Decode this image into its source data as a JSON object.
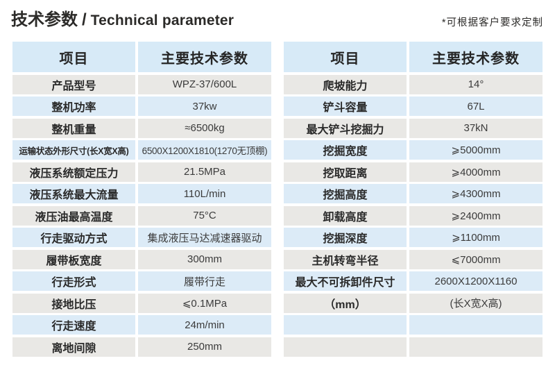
{
  "title": {
    "zh": "技术参数",
    "divider": "/",
    "en": "Technical parameter"
  },
  "note": "*可根据客户要求定制",
  "colors": {
    "header_bg": "#d7eaf7",
    "row_blue": "#dcebf7",
    "row_gray": "#e9e8e5",
    "text": "#2b2b2b"
  },
  "tables": [
    {
      "headers": [
        "项目",
        "主要技术参数"
      ],
      "rows": [
        {
          "label": "产品型号",
          "value": "WPZ-37/600L"
        },
        {
          "label": "整机功率",
          "value": "37kw"
        },
        {
          "label": "整机重量",
          "value": "≈6500kg"
        },
        {
          "label": "运输状态外形尺寸(长X宽X高)",
          "value": "6500X1200X1810(1270无顶棚)"
        },
        {
          "label": "液压系统额定压力",
          "value": "21.5MPa"
        },
        {
          "label": "液压系统最大流量",
          "value": "110L/min"
        },
        {
          "label": "液压油最高温度",
          "value": "75°C"
        },
        {
          "label": "行走驱动方式",
          "value": "集成液压马达减速器驱动"
        },
        {
          "label": "履带板宽度",
          "value": "300mm"
        },
        {
          "label": "行走形式",
          "value": "履带行走"
        },
        {
          "label": "接地比压",
          "value": "⩽0.1MPa"
        },
        {
          "label": "行走速度",
          "value": "24m/min"
        },
        {
          "label": "离地间隙",
          "value": "250mm"
        }
      ]
    },
    {
      "headers": [
        "项目",
        "主要技术参数"
      ],
      "rows": [
        {
          "label": "爬坡能力",
          "value": "14°"
        },
        {
          "label": "铲斗容量",
          "value": "67L"
        },
        {
          "label": "最大铲斗挖掘力",
          "value": "37kN"
        },
        {
          "label": "挖掘宽度",
          "value": "⩾5000mm"
        },
        {
          "label": "挖取距离",
          "value": "⩾4000mm"
        },
        {
          "label": "挖掘高度",
          "value": "⩾4300mm"
        },
        {
          "label": "卸载高度",
          "value": "⩾2400mm"
        },
        {
          "label": "挖掘深度",
          "value": "⩾1100mm"
        },
        {
          "label": "主机转弯半径",
          "value": "⩽7000mm"
        },
        {
          "label": "最大不可拆卸件尺寸",
          "value": "2600X1200X1160"
        },
        {
          "label": "（mm）",
          "value": "(长X宽X高)"
        },
        {
          "label": "",
          "value": ""
        },
        {
          "label": "",
          "value": ""
        }
      ]
    }
  ]
}
